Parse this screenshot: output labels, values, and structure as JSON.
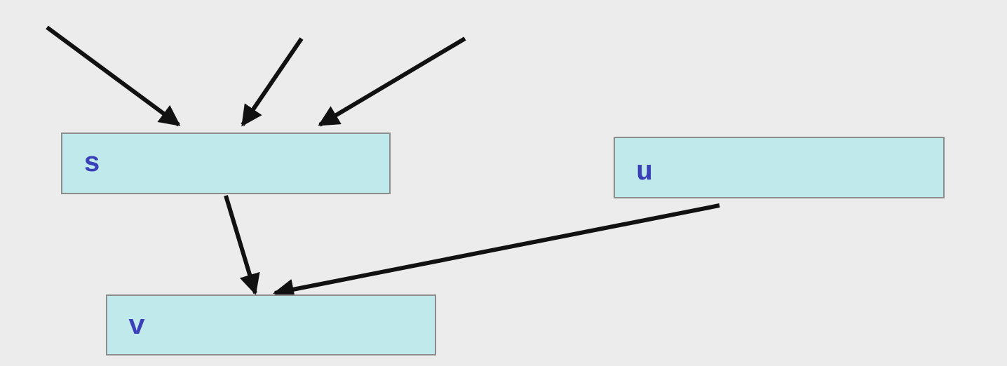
{
  "diagram": {
    "nodes": [
      {
        "id": "s",
        "label": "s"
      },
      {
        "id": "u",
        "label": "u"
      },
      {
        "id": "v",
        "label": "v"
      }
    ],
    "edges": [
      {
        "from": null,
        "to": "s"
      },
      {
        "from": null,
        "to": "s"
      },
      {
        "from": null,
        "to": "s"
      },
      {
        "from": "s",
        "to": "v"
      },
      {
        "from": "u",
        "to": "v"
      }
    ],
    "colors": {
      "background": "#ececec",
      "node_fill": "#bfe9ea",
      "node_border": "#8c8c8c",
      "label": "#3b3fb8",
      "edge": "#111111"
    }
  }
}
